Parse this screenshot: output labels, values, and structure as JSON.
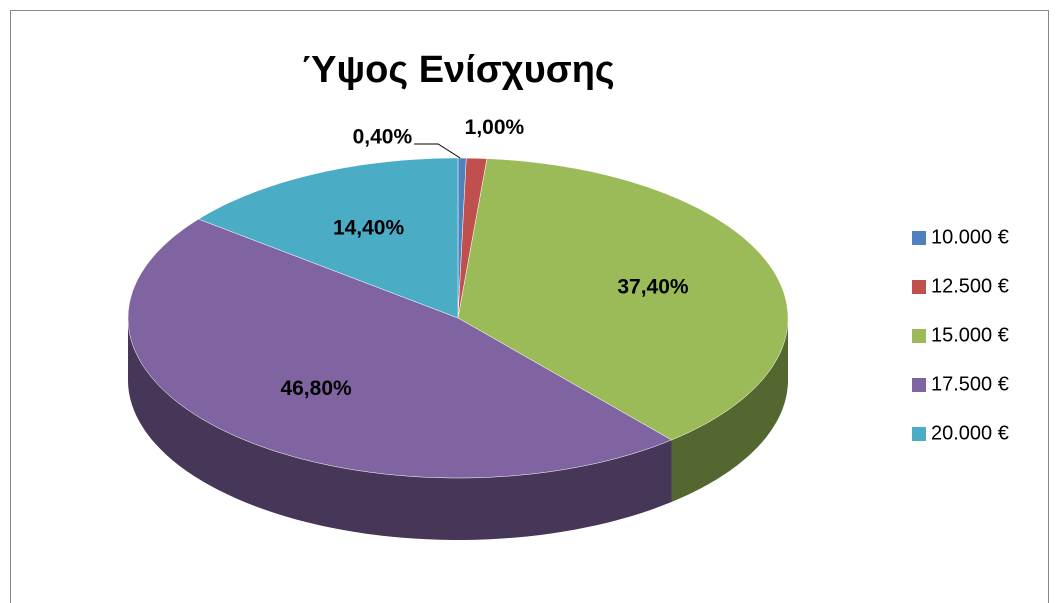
{
  "chart_data": {
    "type": "pie3d",
    "title": "Ύψος Ενίσχυσης",
    "categories": [
      "10.000 €",
      "12.500 €",
      "15.000 €",
      "17.500 €",
      "20.000 €"
    ],
    "values": [
      0.4,
      1.0,
      37.4,
      46.8,
      14.4
    ],
    "value_labels": [
      "0,40%",
      "1,00%",
      "37,40%",
      "46,80%",
      "14,40%"
    ],
    "colors": [
      "#4f81bd",
      "#c0504d",
      "#9bbb59",
      "#8064a2",
      "#4bacc6"
    ],
    "legend": "right"
  }
}
